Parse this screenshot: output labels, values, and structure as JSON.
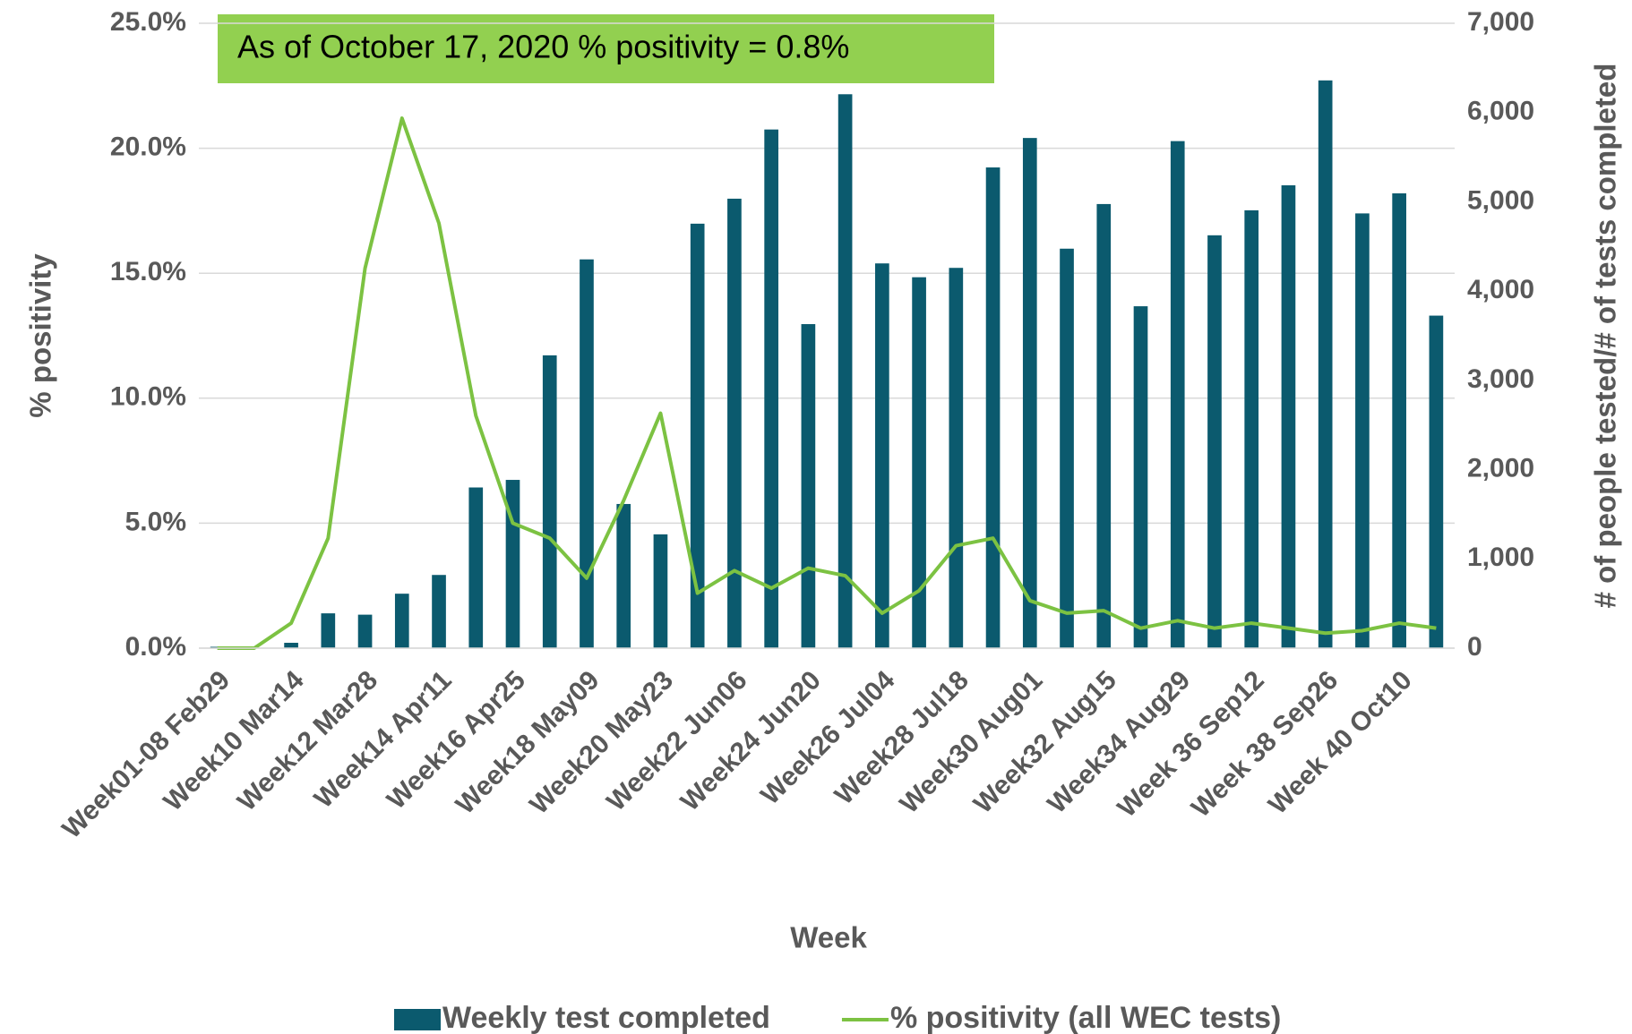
{
  "chart_data": {
    "type": "bar",
    "annotation": "As of October 17, 2020 % positivity = 0.8%",
    "xlabel": "Week",
    "ylabel": "% positivity",
    "y2label": "# of people tested/# of tests completed",
    "categories": [
      "Week01-08 Feb29",
      null,
      "Week10 Mar14",
      null,
      "Week12 Mar28",
      null,
      "Week14 Apr11",
      null,
      "Week16 Apr25",
      null,
      "Week18 May09",
      null,
      "Week20 May23",
      null,
      "Week22 Jun06",
      null,
      "Week24 Jun20",
      null,
      "Week26 Jul04",
      null,
      "Week28 Jul18",
      null,
      "Week30 Aug01",
      null,
      "Week32 Aug15",
      null,
      "Week34 Aug29",
      null,
      "Week 36 Sep12",
      null,
      "Week 38 Sep26",
      null,
      "Week 40 Oct10",
      null
    ],
    "series": [
      {
        "name": "Weekly test completed",
        "type": "bar",
        "axis": "y2",
        "color": "#0b5a6e",
        "values": [
          15,
          0,
          60,
          390,
          375,
          610,
          820,
          1800,
          1885,
          3280,
          4355,
          1615,
          1275,
          4755,
          5035,
          5810,
          3630,
          6205,
          4310,
          4155,
          4260,
          5385,
          5715,
          4475,
          4975,
          3830,
          5680,
          4625,
          4905,
          5185,
          6360,
          4870,
          5095,
          3725
        ]
      },
      {
        "name": "% positivity (all WEC tests)",
        "type": "line",
        "axis": "y",
        "color": "#7cc242",
        "values": [
          0,
          0,
          1.0,
          4.4,
          15.2,
          21.2,
          17.0,
          9.3,
          5.0,
          4.4,
          2.8,
          5.9,
          9.4,
          2.2,
          3.1,
          2.4,
          3.2,
          2.9,
          1.4,
          2.3,
          4.1,
          4.4,
          1.9,
          1.4,
          1.5,
          0.8,
          1.1,
          0.8,
          1.0,
          0.8,
          0.6,
          0.7,
          1.0,
          0.8
        ]
      }
    ],
    "ylim": [
      0,
      25
    ],
    "yticks": [
      {
        "value": 0,
        "label": "0.0%"
      },
      {
        "value": 5,
        "label": "5.0%"
      },
      {
        "value": 10,
        "label": "10.0%"
      },
      {
        "value": 15,
        "label": "15.0%"
      },
      {
        "value": 20,
        "label": "20.0%"
      },
      {
        "value": 25,
        "label": "25.0%"
      }
    ],
    "y2lim": [
      0,
      7000
    ],
    "y2ticks": [
      0,
      {
        "value": 1000,
        "label": "1,000"
      },
      {
        "value": 2000,
        "label": "2,000"
      },
      {
        "value": 3000,
        "label": "3,000"
      },
      {
        "value": 4000,
        "label": "4,000"
      },
      {
        "value": 5000,
        "label": "5,000"
      },
      {
        "value": 6000,
        "label": "6,000"
      },
      {
        "value": 7000,
        "label": "7,000"
      }
    ],
    "grid": true,
    "legend": "bottom"
  }
}
